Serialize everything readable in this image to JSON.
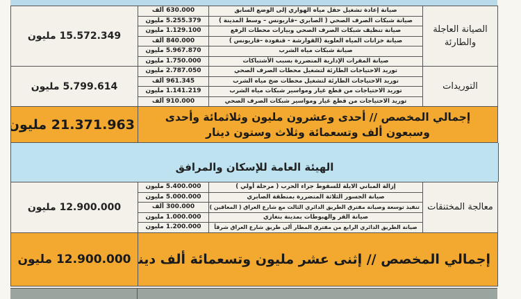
{
  "section1": {
    "groups": [
      {
        "category": "الصيانة العاجلة والطارئة",
        "total": "15.572.349 مليون",
        "items": [
          {
            "desc": "صيانة إعادة تشغيل حقل مياه الهواري إلى الوضع السابق",
            "amount": "630.000 ألف"
          },
          {
            "desc": "صيانة شبكات الصرف الصحي ( الصابري –قاريونس – وسط المدينة )",
            "amount": "5.255.379 مليون"
          },
          {
            "desc": "صيانة تنظيف شبكات الصرف الصحي وبيارات محطات الرفع",
            "amount": "1.129.100 مليون"
          },
          {
            "desc": "صيانة خزانات المياه العلوية (القوارشة - قنفودة –قاريونس )",
            "amount": "840.000 ألف"
          },
          {
            "desc": "صيانة شبكات مياه الشرب",
            "amount": "5.967.870 مليون"
          },
          {
            "desc": "صيانة المقرات الإدارية المتضررة بسبب الأشتباكات",
            "amount": "1.750.000 مليون"
          }
        ]
      },
      {
        "category": "التوريدات",
        "total": "5.799.614 مليون",
        "items": [
          {
            "desc": "توريد الاحتياجات الطارئة لتشغيل محطات الصرف الصحي",
            "amount": "2.787.050 مليون"
          },
          {
            "desc": "توريد الاحتياجات الطارئة لتشغيل محطات ضخ مياه الشرب",
            "amount": "961.345 ألف"
          },
          {
            "desc": "توريد الاحتياجات من قطع غيار ومواسير شبكات مياه الشرب",
            "amount": "1.141.219 مليون"
          },
          {
            "desc": "توريد الاحتياجات من قطع غيار ومواسير شبكات الصرف الصحي",
            "amount": "910.000 ألف"
          }
        ]
      }
    ],
    "grand_total_text": "إجمالي المخصص // أحدى وعشرون مليون وثلاثمائة وأحدى وسبعون ألف وتسعمائة وثلاث وستون دينار",
    "grand_total_value": "21.371.963 مليون"
  },
  "section2": {
    "title": "الهيئة العامة للإسكان والمرافق",
    "groups": [
      {
        "category": "معالجة المختنقات",
        "total": "12.900.000 مليون",
        "items": [
          {
            "desc": "إزالة المباني الايلة للسقوط جراء الحرب ( مرحلة أولي )",
            "amount": "5.400.000 مليون"
          },
          {
            "desc": "صيانة الجسور الثلاثة المتضررة بمنطقة الصابري",
            "amount": "5.000.000 مليون"
          },
          {
            "desc": "تنفيذ توسعة وصيانة مفترق الطريق الدائري الثالث مع شارع العراق ( المعاقين )",
            "amount": "300.000 ألف"
          },
          {
            "desc": "صيانة القر والهبوطات بمدينة بنغازي",
            "amount": "1.000.000 مليون"
          },
          {
            "desc": "صيانة الطريق الدائري الرابع من مفترق المطار ألى طريق شارع العراق شرقاً",
            "amount": "1.200.000 مليون"
          }
        ]
      }
    ],
    "grand_total_text": "إجمالي المخصص // إثنى عشر مليون وتسعمائة ألف دينار",
    "grand_total_value": "12.900.000 مليون"
  },
  "colors": {
    "total_row": "#f3a92f",
    "section_header": "#bfe2f0",
    "cell_bg": "#f4f1ea",
    "footer_band": "#9aa59f"
  }
}
